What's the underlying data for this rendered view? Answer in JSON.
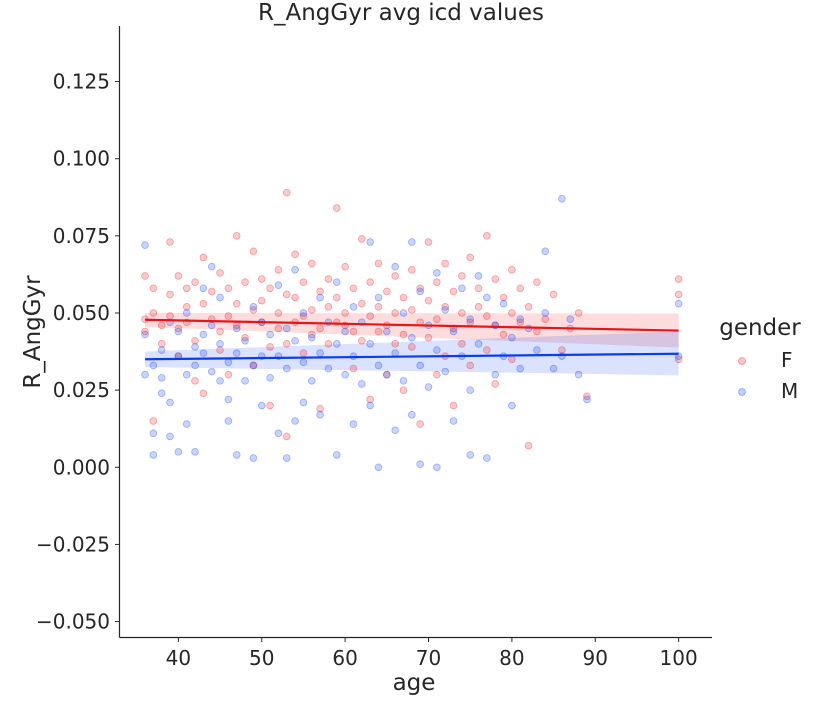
{
  "chart_data": {
    "type": "scatter",
    "title": "R_AngGyr avg icd values",
    "xlabel": "age",
    "ylabel": "R_AngGyr",
    "xlim": [
      33,
      104
    ],
    "ylim": [
      -0.055,
      0.143
    ],
    "xticks": [
      "40",
      "50",
      "60",
      "70",
      "80",
      "90",
      "100"
    ],
    "yticks": [
      "−0.050",
      "−0.025",
      "0.000",
      "0.025",
      "0.050",
      "0.075",
      "0.100",
      "0.125"
    ],
    "grid": false,
    "legend": {
      "title": "gender",
      "placement": "right"
    },
    "series": [
      {
        "name": "F",
        "color": "#e8141c",
        "fit": {
          "start": [
            36,
            0.0478
          ],
          "end": [
            100,
            0.0443
          ],
          "ci_start": [
            0.0455,
            0.05
          ],
          "ci_end": [
            0.0388,
            0.0498
          ]
        },
        "points": [
          [
            36,
            0.062
          ],
          [
            36,
            0.048
          ],
          [
            36,
            0.044
          ],
          [
            37,
            0.015
          ],
          [
            37,
            0.058
          ],
          [
            37,
            0.05
          ],
          [
            38,
            0.046
          ],
          [
            38,
            0.04
          ],
          [
            39,
            0.073
          ],
          [
            39,
            0.056
          ],
          [
            39,
            0.049
          ],
          [
            40,
            0.062
          ],
          [
            40,
            0.045
          ],
          [
            40,
            0.036
          ],
          [
            41,
            0.052
          ],
          [
            41,
            0.047
          ],
          [
            41,
            0.058
          ],
          [
            42,
            0.06
          ],
          [
            42,
            0.041
          ],
          [
            42,
            0.028
          ],
          [
            43,
            0.068
          ],
          [
            43,
            0.053
          ],
          [
            43,
            0.024
          ],
          [
            44,
            0.048
          ],
          [
            44,
            0.057
          ],
          [
            45,
            0.063
          ],
          [
            45,
            0.044
          ],
          [
            45,
            0.038
          ],
          [
            46,
            0.058
          ],
          [
            46,
            0.049
          ],
          [
            46,
            0.03
          ],
          [
            47,
            0.075
          ],
          [
            47,
            0.053
          ],
          [
            47,
            0.046
          ],
          [
            48,
            0.06
          ],
          [
            48,
            0.042
          ],
          [
            49,
            0.07
          ],
          [
            49,
            0.051
          ],
          [
            49,
            0.033
          ],
          [
            50,
            0.061
          ],
          [
            50,
            0.054
          ],
          [
            50,
            0.047
          ],
          [
            51,
            0.058
          ],
          [
            51,
            0.039
          ],
          [
            51,
            0.02
          ],
          [
            52,
            0.064
          ],
          [
            52,
            0.05
          ],
          [
            52,
            0.045
          ],
          [
            53,
            0.089
          ],
          [
            53,
            0.056
          ],
          [
            53,
            0.04
          ],
          [
            53,
            0.01
          ],
          [
            54,
            0.069
          ],
          [
            54,
            0.055
          ],
          [
            54,
            0.047
          ],
          [
            55,
            0.06
          ],
          [
            55,
            0.049
          ],
          [
            55,
            0.037
          ],
          [
            56,
            0.066
          ],
          [
            56,
            0.051
          ],
          [
            56,
            0.043
          ],
          [
            57,
            0.057
          ],
          [
            57,
            0.045
          ],
          [
            57,
            0.019
          ],
          [
            58,
            0.061
          ],
          [
            58,
            0.052
          ],
          [
            58,
            0.04
          ],
          [
            59,
            0.084
          ],
          [
            59,
            0.055
          ],
          [
            59,
            0.047
          ],
          [
            60,
            0.065
          ],
          [
            60,
            0.05
          ],
          [
            60,
            0.046
          ],
          [
            61,
            0.058
          ],
          [
            61,
            0.044
          ],
          [
            61,
            0.032
          ],
          [
            62,
            0.074
          ],
          [
            62,
            0.053
          ],
          [
            62,
            0.041
          ],
          [
            63,
            0.06
          ],
          [
            63,
            0.049
          ],
          [
            63,
            0.022
          ],
          [
            64,
            0.066
          ],
          [
            64,
            0.052
          ],
          [
            64,
            0.044
          ],
          [
            65,
            0.057
          ],
          [
            65,
            0.046
          ],
          [
            65,
            0.03
          ],
          [
            66,
            0.062
          ],
          [
            66,
            0.05
          ],
          [
            66,
            0.04
          ],
          [
            67,
            0.055
          ],
          [
            67,
            0.043
          ],
          [
            67,
            0.025
          ],
          [
            68,
            0.064
          ],
          [
            68,
            0.051
          ],
          [
            68,
            0.039
          ],
          [
            69,
            0.058
          ],
          [
            69,
            0.047
          ],
          [
            69,
            0.014
          ],
          [
            70,
            0.073
          ],
          [
            70,
            0.054
          ],
          [
            70,
            0.042
          ],
          [
            71,
            0.06
          ],
          [
            71,
            0.048
          ],
          [
            71,
            0.03
          ],
          [
            72,
            0.066
          ],
          [
            72,
            0.052
          ],
          [
            72,
            0.036
          ],
          [
            73,
            0.057
          ],
          [
            73,
            0.045
          ],
          [
            73,
            0.02
          ],
          [
            74,
            0.062
          ],
          [
            74,
            0.05
          ],
          [
            74,
            0.04
          ],
          [
            75,
            0.068
          ],
          [
            75,
            0.047
          ],
          [
            75,
            0.033
          ],
          [
            76,
            0.058
          ],
          [
            76,
            0.052
          ],
          [
            77,
            0.075
          ],
          [
            77,
            0.049
          ],
          [
            77,
            0.038
          ],
          [
            78,
            0.061
          ],
          [
            78,
            0.046
          ],
          [
            78,
            0.027
          ],
          [
            79,
            0.055
          ],
          [
            79,
            0.043
          ],
          [
            80,
            0.064
          ],
          [
            80,
            0.05
          ],
          [
            80,
            0.035
          ],
          [
            81,
            0.058
          ],
          [
            81,
            0.047
          ],
          [
            82,
            0.007
          ],
          [
            82,
            0.052
          ],
          [
            83,
            0.06
          ],
          [
            83,
            0.044
          ],
          [
            84,
            0.048
          ],
          [
            85,
            0.056
          ],
          [
            86,
            0.038
          ],
          [
            87,
            0.045
          ],
          [
            88,
            0.05
          ],
          [
            89,
            0.023
          ],
          [
            100,
            0.061
          ],
          [
            100,
            0.056
          ],
          [
            100,
            0.035
          ]
        ]
      },
      {
        "name": "M",
        "color": "#0a3cf0",
        "fit": {
          "start": [
            36,
            0.035
          ],
          "end": [
            100,
            0.0368
          ],
          "ci_start": [
            0.0325,
            0.0375
          ],
          "ci_end": [
            0.0298,
            0.044
          ]
        },
        "points": [
          [
            36,
            0.072
          ],
          [
            36,
            0.043
          ],
          [
            36,
            0.03
          ],
          [
            37,
            0.033
          ],
          [
            37,
            0.011
          ],
          [
            37,
            0.004
          ],
          [
            38,
            0.029
          ],
          [
            38,
            0.038
          ],
          [
            38,
            0.024
          ],
          [
            39,
            0.021
          ],
          [
            39,
            0.047
          ],
          [
            39,
            0.01
          ],
          [
            40,
            0.044
          ],
          [
            40,
            0.036
          ],
          [
            40,
            0.005
          ],
          [
            41,
            0.05
          ],
          [
            41,
            0.03
          ],
          [
            41,
            0.014
          ],
          [
            42,
            0.039
          ],
          [
            42,
            0.033
          ],
          [
            42,
            0.005
          ],
          [
            43,
            0.058
          ],
          [
            43,
            0.043
          ],
          [
            43,
            0.037
          ],
          [
            44,
            0.046
          ],
          [
            44,
            0.031
          ],
          [
            44,
            0.065
          ],
          [
            45,
            0.055
          ],
          [
            45,
            0.04
          ],
          [
            45,
            0.028
          ],
          [
            46,
            0.034
          ],
          [
            46,
            0.022
          ],
          [
            46,
            0.015
          ],
          [
            47,
            0.045
          ],
          [
            47,
            0.037
          ],
          [
            47,
            0.004
          ],
          [
            48,
            0.041
          ],
          [
            48,
            0.028
          ],
          [
            49,
            0.052
          ],
          [
            49,
            0.033
          ],
          [
            49,
            0.003
          ],
          [
            50,
            0.047
          ],
          [
            50,
            0.036
          ],
          [
            50,
            0.02
          ],
          [
            51,
            0.043
          ],
          [
            51,
            0.029
          ],
          [
            52,
            0.059
          ],
          [
            52,
            0.036
          ],
          [
            52,
            0.011
          ],
          [
            53,
            0.045
          ],
          [
            53,
            0.032
          ],
          [
            53,
            0.003
          ],
          [
            54,
            0.064
          ],
          [
            54,
            0.041
          ],
          [
            54,
            0.015
          ],
          [
            55,
            0.05
          ],
          [
            55,
            0.034
          ],
          [
            55,
            0.021
          ],
          [
            56,
            0.042
          ],
          [
            56,
            0.028
          ],
          [
            57,
            0.055
          ],
          [
            57,
            0.037
          ],
          [
            57,
            0.017
          ],
          [
            58,
            0.047
          ],
          [
            58,
            0.032
          ],
          [
            59,
            0.06
          ],
          [
            59,
            0.04
          ],
          [
            59,
            0.004
          ],
          [
            60,
            0.044
          ],
          [
            60,
            0.03
          ],
          [
            61,
            0.052
          ],
          [
            61,
            0.036
          ],
          [
            61,
            0.014
          ],
          [
            62,
            0.047
          ],
          [
            62,
            0.027
          ],
          [
            63,
            0.073
          ],
          [
            63,
            0.04
          ],
          [
            63,
            0.02
          ],
          [
            64,
            0.055
          ],
          [
            64,
            0.033
          ],
          [
            64,
            0.0
          ],
          [
            65,
            0.044
          ],
          [
            65,
            0.03
          ],
          [
            66,
            0.065
          ],
          [
            66,
            0.037
          ],
          [
            66,
            0.012
          ],
          [
            67,
            0.05
          ],
          [
            67,
            0.028
          ],
          [
            68,
            0.073
          ],
          [
            68,
            0.042
          ],
          [
            68,
            0.017
          ],
          [
            69,
            0.057
          ],
          [
            69,
            0.033
          ],
          [
            69,
            0.001
          ],
          [
            70,
            0.046
          ],
          [
            70,
            0.026
          ],
          [
            71,
            0.063
          ],
          [
            71,
            0.038
          ],
          [
            71,
            0.0
          ],
          [
            72,
            0.051
          ],
          [
            72,
            0.031
          ],
          [
            73,
            0.044
          ],
          [
            73,
            0.015
          ],
          [
            74,
            0.058
          ],
          [
            74,
            0.036
          ],
          [
            75,
            0.048
          ],
          [
            75,
            0.025
          ],
          [
            75,
            0.004
          ],
          [
            76,
            0.062
          ],
          [
            76,
            0.04
          ],
          [
            77,
            0.055
          ],
          [
            77,
            0.003
          ],
          [
            78,
            0.046
          ],
          [
            78,
            0.03
          ],
          [
            79,
            0.053
          ],
          [
            79,
            0.036
          ],
          [
            80,
            0.042
          ],
          [
            80,
            0.02
          ],
          [
            81,
            0.048
          ],
          [
            81,
            0.032
          ],
          [
            82,
            0.045
          ],
          [
            83,
            0.038
          ],
          [
            84,
            0.07
          ],
          [
            84,
            0.05
          ],
          [
            85,
            0.032
          ],
          [
            86,
            0.087
          ],
          [
            86,
            0.036
          ],
          [
            87,
            0.048
          ],
          [
            88,
            0.03
          ],
          [
            89,
            0.022
          ],
          [
            100,
            0.053
          ],
          [
            100,
            0.036
          ]
        ]
      }
    ]
  }
}
